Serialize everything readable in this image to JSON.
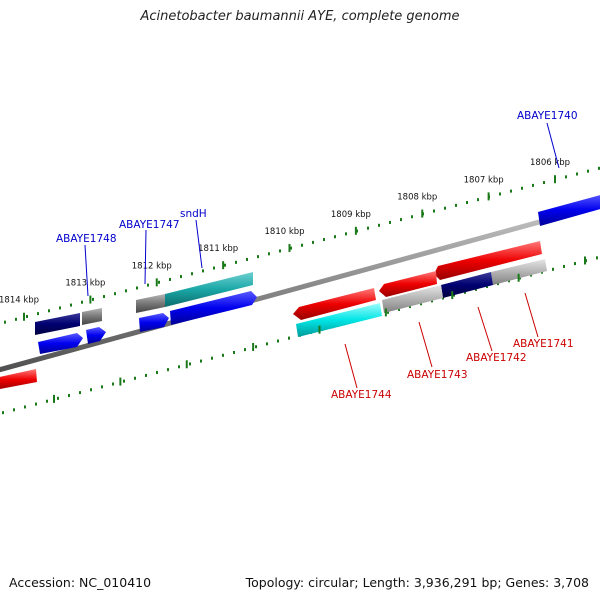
{
  "title": "Acinetobacter baumannii AYE, complete genome",
  "footer": {
    "accession": "Accession: NC_010410",
    "summary": "Topology: circular; Length: 3,936,291 bp; Genes: 3,708"
  },
  "scale_ticks": [
    {
      "pos": 1806,
      "label": "1806 kbp"
    },
    {
      "pos": 1807,
      "label": "1807 kbp"
    },
    {
      "pos": 1808,
      "label": "1808 kbp"
    },
    {
      "pos": 1809,
      "label": "1809 kbp"
    },
    {
      "pos": 1810,
      "label": "1810 kbp"
    },
    {
      "pos": 1811,
      "label": "1811 kbp"
    },
    {
      "pos": 1812,
      "label": "1812 kbp"
    },
    {
      "pos": 1813,
      "label": "1813 kbp"
    },
    {
      "pos": 1814,
      "label": "1814 kbp"
    }
  ],
  "gene_labels": [
    {
      "id": "ABAYE1740",
      "strand": "top"
    },
    {
      "id": "sndH",
      "strand": "top"
    },
    {
      "id": "ABAYE1747",
      "strand": "top"
    },
    {
      "id": "ABAYE1748",
      "strand": "top"
    },
    {
      "id": "ABAYE1741",
      "strand": "bottom"
    },
    {
      "id": "ABAYE1742",
      "strand": "bottom"
    },
    {
      "id": "ABAYE1743",
      "strand": "bottom"
    },
    {
      "id": "ABAYE1744",
      "strand": "bottom"
    }
  ],
  "colors": {
    "top_label": "#0000cc",
    "bottom_label": "#cc0000",
    "tick": "#1a7a1a",
    "backbone": "#888888",
    "blue": "#0000ee",
    "navy": "#000070",
    "red": "#ee0000",
    "cyan": "#00e5e5",
    "teal": "#1aa6a6",
    "gray": "#777777",
    "lightgray": "#b3b3b3"
  }
}
